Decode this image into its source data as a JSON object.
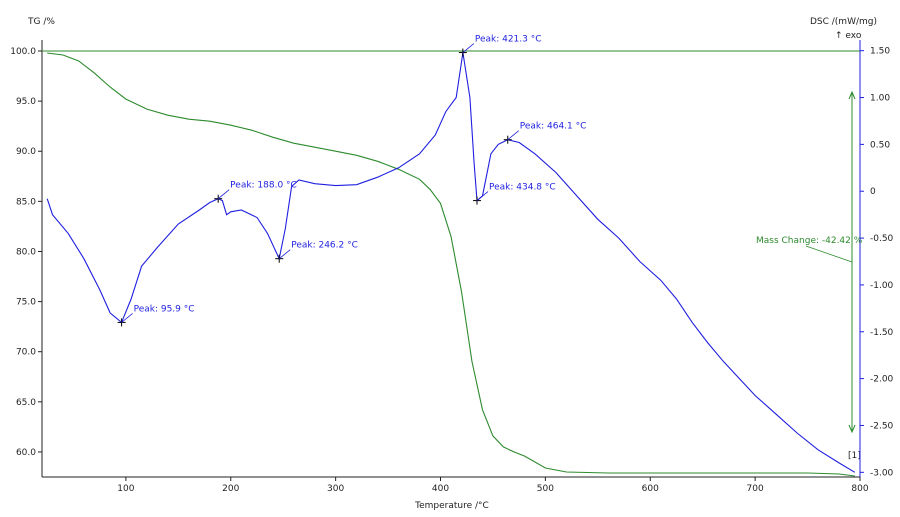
{
  "chart_data": {
    "type": "line",
    "xlabel": "Temperature /°C",
    "ylabel_left": "TG /%",
    "ylabel_right": "DSC /(mW/mg)",
    "exo_label": "↑ exo",
    "curve_id_label": "[1]",
    "xlim": [
      20,
      800
    ],
    "ylim_left": [
      57.5,
      100.5
    ],
    "ylim_right": [
      -3.05,
      1.55
    ],
    "x_ticks": [
      100,
      200,
      300,
      400,
      500,
      600,
      700,
      800
    ],
    "y_left_ticks": [
      60.0,
      65.0,
      70.0,
      75.0,
      80.0,
      85.0,
      90.0,
      95.0,
      100.0
    ],
    "y_right_ticks": [
      -3.0,
      -2.5,
      -2.0,
      -1.5,
      -1.0,
      -0.5,
      0,
      0.5,
      1.0,
      1.5
    ],
    "x_tick_labels": [
      "100",
      "200",
      "300",
      "400",
      "500",
      "600",
      "700",
      "800"
    ],
    "y_left_tick_labels": [
      "60.0",
      "65.0",
      "70.0",
      "75.0",
      "80.0",
      "85.0",
      "90.0",
      "95.0",
      "100.0"
    ],
    "y_right_tick_labels": [
      "-3.00",
      "-2.50",
      "-2.00",
      "-1.50",
      "-1.00",
      "-0.50",
      "0",
      "0.50",
      "1.00",
      "1.50"
    ],
    "grid": false,
    "colors": {
      "tg": "#2e8b2e",
      "dsc": "#1f1fe0",
      "axis": "#222222"
    },
    "series": [
      {
        "axis": "left",
        "color": "#2e8b2e",
        "points": [
          [
            25,
            99.8
          ],
          [
            40,
            99.6
          ],
          [
            55,
            99.0
          ],
          [
            70,
            97.8
          ],
          [
            85,
            96.4
          ],
          [
            100,
            95.2
          ],
          [
            120,
            94.2
          ],
          [
            140,
            93.6
          ],
          [
            160,
            93.2
          ],
          [
            180,
            93.0
          ],
          [
            200,
            92.6
          ],
          [
            220,
            92.1
          ],
          [
            240,
            91.4
          ],
          [
            260,
            90.8
          ],
          [
            280,
            90.4
          ],
          [
            300,
            90.0
          ],
          [
            320,
            89.6
          ],
          [
            340,
            89.0
          ],
          [
            360,
            88.2
          ],
          [
            380,
            87.2
          ],
          [
            390,
            86.2
          ],
          [
            400,
            84.8
          ],
          [
            410,
            81.5
          ],
          [
            420,
            76.0
          ],
          [
            430,
            69.0
          ],
          [
            440,
            64.2
          ],
          [
            450,
            61.6
          ],
          [
            460,
            60.5
          ],
          [
            470,
            60.0
          ],
          [
            480,
            59.6
          ],
          [
            500,
            58.4
          ],
          [
            520,
            58.0
          ],
          [
            560,
            57.9
          ],
          [
            600,
            57.9
          ],
          [
            650,
            57.9
          ],
          [
            700,
            57.9
          ],
          [
            750,
            57.9
          ],
          [
            780,
            57.8
          ],
          [
            795,
            57.6
          ]
        ]
      },
      {
        "axis": "right",
        "color": "#1f1fe0",
        "points": [
          [
            25,
            -0.08
          ],
          [
            30,
            -0.25
          ],
          [
            45,
            -0.45
          ],
          [
            60,
            -0.72
          ],
          [
            75,
            -1.05
          ],
          [
            85,
            -1.3
          ],
          [
            95.9,
            -1.4
          ],
          [
            105,
            -1.15
          ],
          [
            115,
            -0.8
          ],
          [
            130,
            -0.6
          ],
          [
            150,
            -0.35
          ],
          [
            170,
            -0.2
          ],
          [
            180,
            -0.12
          ],
          [
            188,
            -0.08
          ],
          [
            192,
            -0.1
          ],
          [
            196,
            -0.25
          ],
          [
            200,
            -0.22
          ],
          [
            210,
            -0.2
          ],
          [
            225,
            -0.28
          ],
          [
            235,
            -0.45
          ],
          [
            246.2,
            -0.72
          ],
          [
            252,
            -0.4
          ],
          [
            258,
            0.05
          ],
          [
            265,
            0.12
          ],
          [
            280,
            0.08
          ],
          [
            300,
            0.06
          ],
          [
            320,
            0.07
          ],
          [
            340,
            0.15
          ],
          [
            360,
            0.25
          ],
          [
            380,
            0.4
          ],
          [
            395,
            0.6
          ],
          [
            405,
            0.85
          ],
          [
            415,
            1.0
          ],
          [
            421.3,
            1.48
          ],
          [
            428,
            1.0
          ],
          [
            432,
            0.3
          ],
          [
            434.8,
            -0.1
          ],
          [
            440,
            -0.05
          ],
          [
            448,
            0.4
          ],
          [
            455,
            0.5
          ],
          [
            464.1,
            0.55
          ],
          [
            475,
            0.52
          ],
          [
            490,
            0.4
          ],
          [
            510,
            0.2
          ],
          [
            530,
            -0.05
          ],
          [
            550,
            -0.3
          ],
          [
            570,
            -0.5
          ],
          [
            590,
            -0.75
          ],
          [
            610,
            -0.95
          ],
          [
            625,
            -1.15
          ],
          [
            640,
            -1.4
          ],
          [
            655,
            -1.62
          ],
          [
            670,
            -1.82
          ],
          [
            685,
            -2.0
          ],
          [
            700,
            -2.18
          ],
          [
            720,
            -2.38
          ],
          [
            740,
            -2.58
          ],
          [
            760,
            -2.76
          ],
          [
            780,
            -2.9
          ],
          [
            795,
            -3.0
          ]
        ]
      }
    ],
    "annotations": [
      {
        "text": "Peak: 95.9 °C",
        "x": 95.9,
        "y": -1.4,
        "axis": "right"
      },
      {
        "text": "Peak: 188.0 °C",
        "x": 188.0,
        "y": -0.08,
        "axis": "right"
      },
      {
        "text": "Peak: 246.2 °C",
        "x": 246.2,
        "y": -0.72,
        "axis": "right"
      },
      {
        "text": "Peak: 421.3 °C",
        "x": 421.3,
        "y": 1.48,
        "axis": "right"
      },
      {
        "text": "Peak: 434.8 °C",
        "x": 434.8,
        "y": -0.1,
        "axis": "right"
      },
      {
        "text": "Peak: 464.1 °C",
        "x": 464.1,
        "y": 0.55,
        "axis": "right"
      }
    ],
    "mass_change_label": "Mass Change: -42.42 %"
  }
}
